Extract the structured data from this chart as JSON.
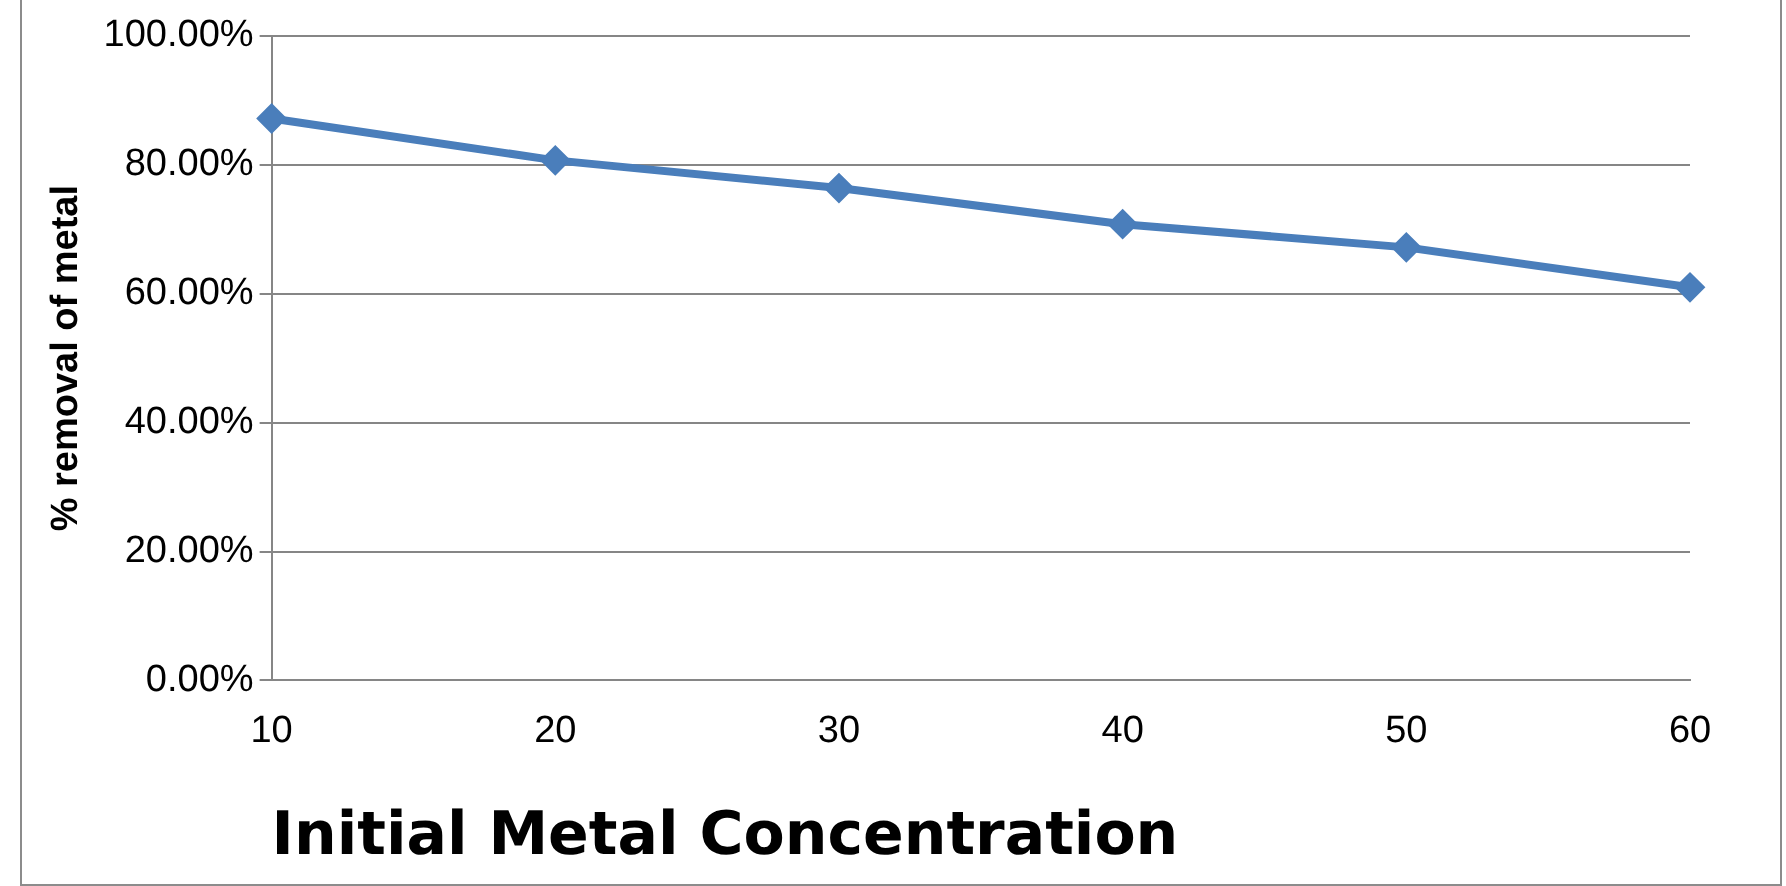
{
  "chart_data": {
    "type": "line",
    "xlabel": "Initial Metal Concentration",
    "ylabel": "% removal of metal",
    "categories": [
      "10",
      "20",
      "30",
      "40",
      "50",
      "60"
    ],
    "series": [
      {
        "color": "#4a7ebb",
        "values": [
          87.2,
          80.7,
          76.4,
          70.8,
          67.2,
          61.0
        ]
      }
    ],
    "ylim": [
      0,
      100
    ],
    "yticks": [
      {
        "value": 0,
        "label": "0.00%"
      },
      {
        "value": 20,
        "label": "20.00%"
      },
      {
        "value": 40,
        "label": "40.00%"
      },
      {
        "value": 60,
        "label": "60.00%"
      },
      {
        "value": 80,
        "label": "80.00%"
      },
      {
        "value": 100,
        "label": "100.00%"
      }
    ],
    "grid": "y",
    "legend": false,
    "marker": "diamond",
    "line_style": "solid"
  }
}
